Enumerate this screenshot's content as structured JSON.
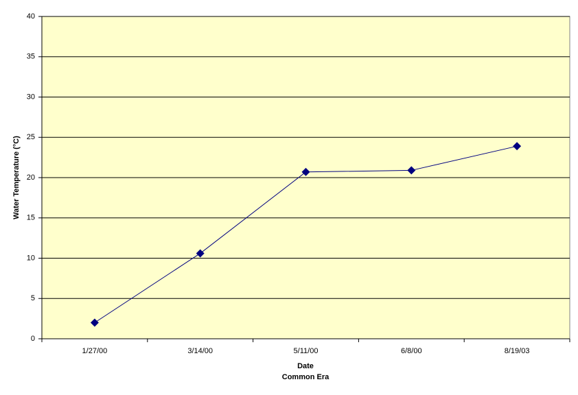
{
  "chart_data": {
    "type": "line",
    "xlabel": [
      "Date",
      "Common Era"
    ],
    "ylabel": "Water Temperature (°C)",
    "categories": [
      "1/27/00",
      "3/14/00",
      "5/11/00",
      "6/8/00",
      "8/19/03"
    ],
    "series": [
      {
        "name": "Water Temperature",
        "color": "#000080",
        "values": [
          2.0,
          10.6,
          20.7,
          20.9,
          23.9
        ]
      }
    ],
    "ylim": [
      0,
      40
    ],
    "yticks": [
      0,
      5,
      10,
      15,
      20,
      25,
      30,
      35,
      40
    ],
    "grid": true,
    "background": "#ffffcc"
  }
}
